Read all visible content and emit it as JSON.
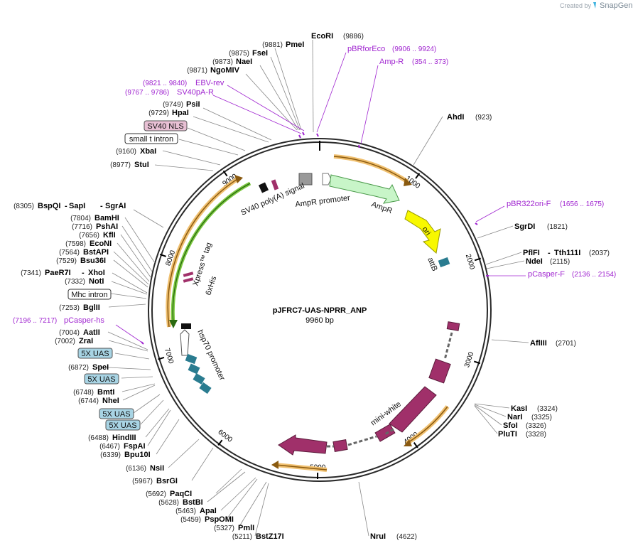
{
  "branding": {
    "created_by": "Created by",
    "app": "SnapGene"
  },
  "map": {
    "name": "pJFRC7-UAS-NPRR_ANP",
    "length_label": "9960 bp"
  },
  "ticks": [
    "1000",
    "2000",
    "3000",
    "4000",
    "5000",
    "6000",
    "7000",
    "8000",
    "9000"
  ],
  "sites": [
    {
      "name": "EcoRI",
      "pos": "(9886)"
    },
    {
      "name": "PmeI",
      "pos": "(9881)"
    },
    {
      "name": "FseI",
      "pos": "(9875)"
    },
    {
      "name": "NaeI",
      "pos": "(9873)"
    },
    {
      "name": "NgoMIV",
      "pos": "(9871)"
    },
    {
      "name": "PsiI",
      "pos": "(9749)"
    },
    {
      "name": "HpaI",
      "pos": "(9729)"
    },
    {
      "name": "XbaI",
      "pos": "(9160)"
    },
    {
      "name": "StuI",
      "pos": "(8977)"
    },
    {
      "name": "BspQI",
      "pos": "(8305)"
    },
    {
      "name": "SapI",
      "pos": ""
    },
    {
      "name": "SgrAI",
      "pos": ""
    },
    {
      "name": "BamHI",
      "pos": "(7804)"
    },
    {
      "name": "PshAI",
      "pos": "(7716)"
    },
    {
      "name": "KflI",
      "pos": "(7656)"
    },
    {
      "name": "EcoNI",
      "pos": "(7598)"
    },
    {
      "name": "BstAPI",
      "pos": "(7564)"
    },
    {
      "name": "Bsu36I",
      "pos": "(7529)"
    },
    {
      "name": "PaeR7I",
      "pos": "(7341)"
    },
    {
      "name": "XhoI",
      "pos": ""
    },
    {
      "name": "NotI",
      "pos": "(7332)"
    },
    {
      "name": "BglII",
      "pos": "(7253)"
    },
    {
      "name": "AatII",
      "pos": "(7004)"
    },
    {
      "name": "ZraI",
      "pos": "(7002)"
    },
    {
      "name": "SpeI",
      "pos": "(6872)"
    },
    {
      "name": "BmtI",
      "pos": "(6748)"
    },
    {
      "name": "NheI",
      "pos": "(6744)"
    },
    {
      "name": "HindIII",
      "pos": "(6488)"
    },
    {
      "name": "FspAI",
      "pos": "(6467)"
    },
    {
      "name": "Bpu10I",
      "pos": "(6339)"
    },
    {
      "name": "NsiI",
      "pos": "(6136)"
    },
    {
      "name": "BsrGI",
      "pos": "(5967)"
    },
    {
      "name": "PaqCI",
      "pos": "(5692)"
    },
    {
      "name": "BstBI",
      "pos": "(5628)"
    },
    {
      "name": "ApaI",
      "pos": "(5463)"
    },
    {
      "name": "PspOMI",
      "pos": "(5459)"
    },
    {
      "name": "PmlI",
      "pos": "(5327)"
    },
    {
      "name": "BstZ17I",
      "pos": "(5211)"
    },
    {
      "name": "NruI",
      "pos": "(4622)"
    },
    {
      "name": "AhdI",
      "pos": "(923)"
    },
    {
      "name": "SgrDI",
      "pos": "(1821)"
    },
    {
      "name": "PflFI",
      "pos": ""
    },
    {
      "name": "Tth111I",
      "pos": "(2037)"
    },
    {
      "name": "NdeI",
      "pos": "(2115)"
    },
    {
      "name": "AflIII",
      "pos": "(2701)"
    },
    {
      "name": "KasI",
      "pos": "(3324)"
    },
    {
      "name": "NarI",
      "pos": "(3325)"
    },
    {
      "name": "SfoI",
      "pos": "(3326)"
    },
    {
      "name": "PluTI",
      "pos": "(3328)"
    }
  ],
  "primers": [
    {
      "name": "pBRforEco",
      "range": "(9906 .. 9924)"
    },
    {
      "name": "Amp-R",
      "range": "(354 .. 373)"
    },
    {
      "name": "EBV-rev",
      "range": "(9821 .. 9840)"
    },
    {
      "name": "SV40pA-R",
      "range": "(9767 .. 9786)"
    },
    {
      "name": "pBR322ori-F",
      "range": "(1656 .. 1675)"
    },
    {
      "name": "pCasper-F",
      "range": "(2136 .. 2154)"
    },
    {
      "name": "pCasper-hs",
      "range": "(7196 .. 7217)"
    }
  ],
  "boxes": [
    "SV40 NLS",
    "small t intron",
    "Mhc intron",
    "5X UAS",
    "5X UAS",
    "5X UAS",
    "5X UAS"
  ],
  "features": [
    "SV40 poly(A) signal",
    "AmpR promoter",
    "AmpR",
    "ori",
    "attB",
    "Xpress™ tag",
    "6xHis",
    "hsp70 promoter",
    "mini-white"
  ],
  "colors": {
    "backbone": "#2a2a2a",
    "ampr": "#c8f5c8",
    "ori": "#f8f800",
    "attb": "#2a7c90",
    "white": "#a0306a",
    "uas": "#2a7c90",
    "arrow": "#f0c070",
    "primer": "#a025d0"
  }
}
